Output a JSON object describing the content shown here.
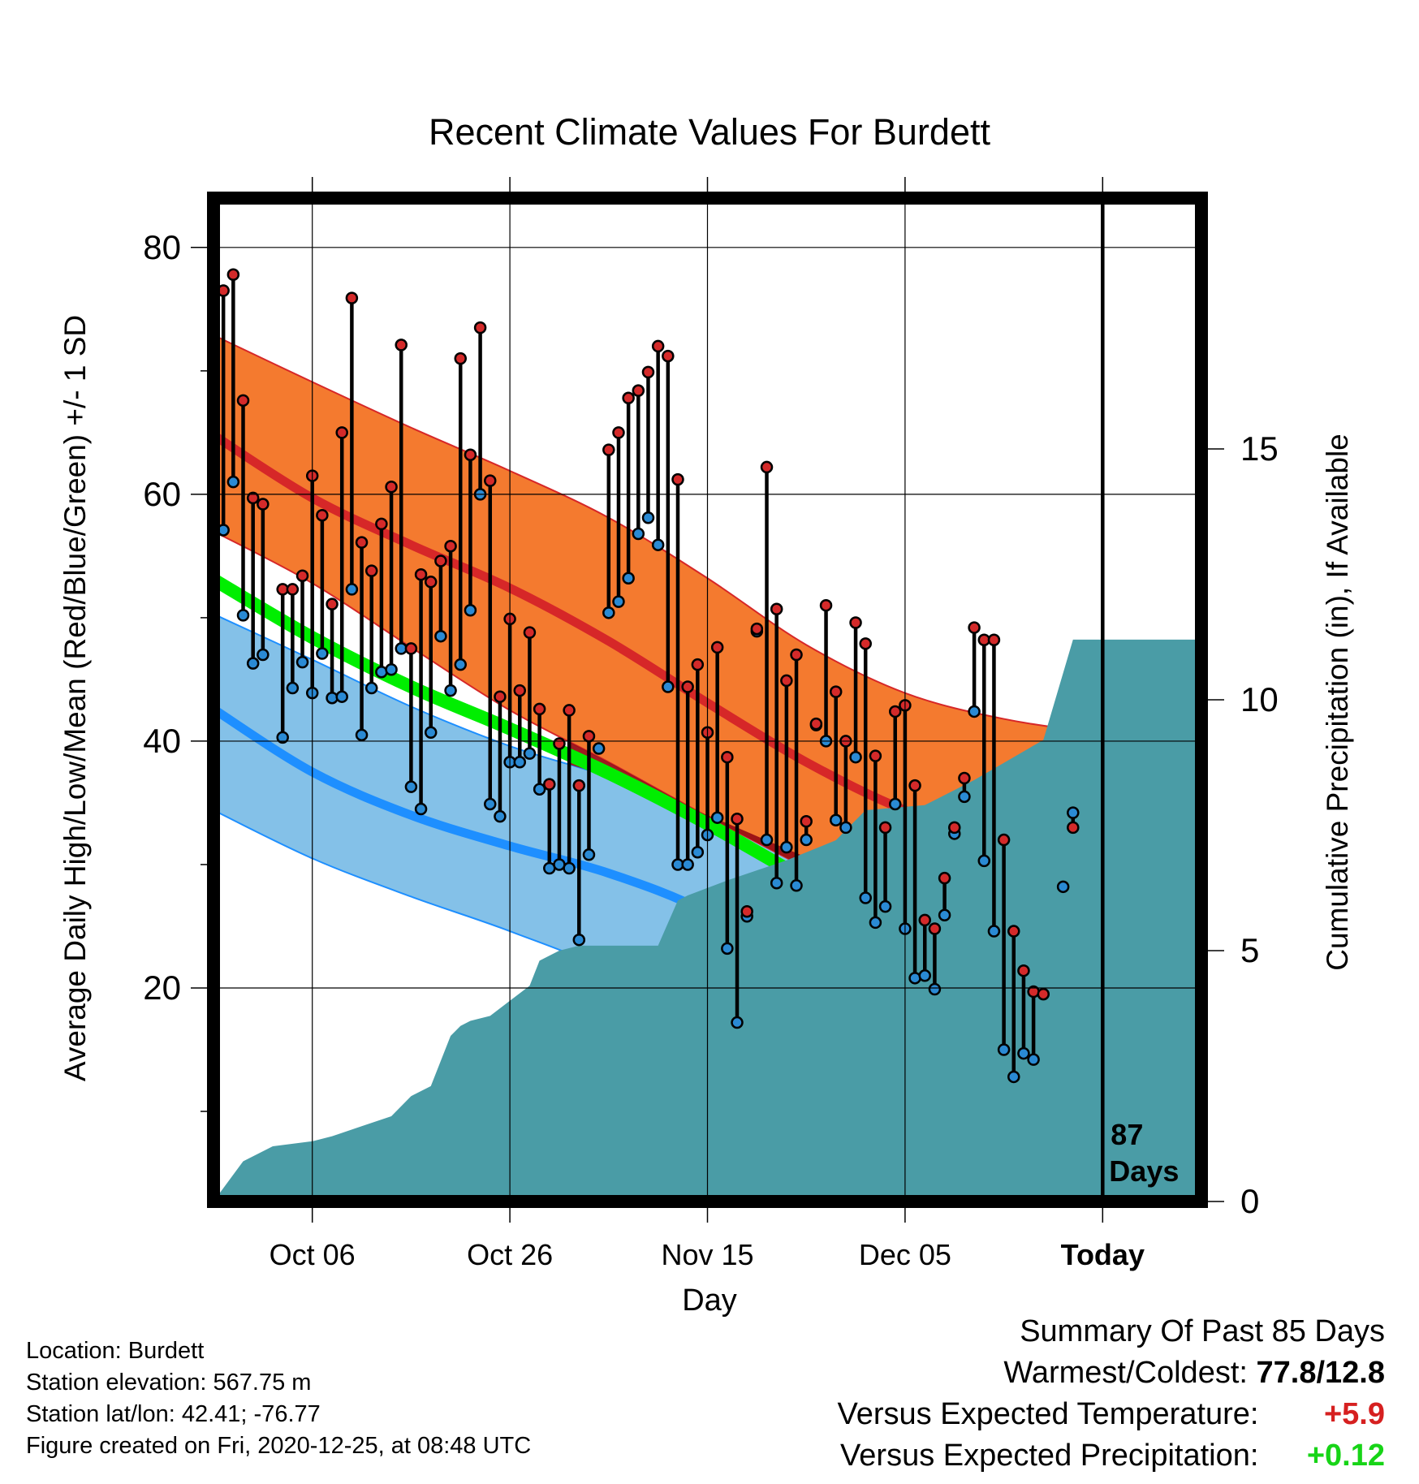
{
  "chart_data": {
    "type": "line",
    "title": "Recent Climate Values For Burdett",
    "xlabel": "Day",
    "ylabel_left": "Average Daily High/Low/Mean (Red/Blue/Green) +/- 1 SD",
    "ylabel_right": "Cumulative Precipitation (in), If Available",
    "x_tick_labels": [
      "Oct 06",
      "Oct 26",
      "Nov 15",
      "Dec 05",
      "Today"
    ],
    "x_tick_days": [
      10,
      30,
      50,
      70,
      90
    ],
    "y_ticks_left": [
      20,
      40,
      60,
      80
    ],
    "y_ticks_right": [
      0,
      5,
      10,
      15
    ],
    "ylim_left": [
      2.7,
      84
    ],
    "ylim_right": [
      0,
      20
    ],
    "xlim_days": [
      0,
      100
    ],
    "today_marker_label": [
      "87",
      "Days"
    ],
    "today_day": 90,
    "normals_x": [
      0,
      10,
      20,
      30,
      40,
      50,
      60,
      70,
      80,
      90,
      100
    ],
    "normal_high_mean": [
      64.8,
      59.7,
      55.9,
      52.4,
      48.1,
      43.1,
      38.3,
      34.4,
      31.9,
      30.5,
      29.5
    ],
    "normal_high_upper": [
      72.9,
      69.1,
      65.4,
      61.9,
      58.1,
      53.2,
      47.8,
      43.9,
      41.8,
      40.7,
      40.4
    ],
    "normal_high_lower": [
      57.0,
      52.8,
      47.6,
      42.5,
      38.3,
      33.9,
      29.7,
      25.4,
      21.7,
      20.0,
      19.4
    ],
    "normal_mean": [
      53.1,
      48.4,
      44.4,
      41.0,
      37.4,
      33.3,
      28.8,
      24.9,
      22.0,
      20.7,
      20.3
    ],
    "normal_low_mean": [
      42.6,
      37.5,
      34.0,
      31.5,
      29.3,
      26.1,
      21.0,
      15.8,
      12.6,
      11.1,
      10.6
    ],
    "normal_low_upper": [
      50.3,
      46.6,
      42.8,
      39.6,
      37.1,
      34.0,
      30.6,
      27.5,
      25.3,
      23.7,
      21.9
    ],
    "normal_low_lower": [
      34.4,
      30.5,
      27.4,
      24.6,
      21.3,
      16.1,
      11.3,
      6.3,
      3.0,
      1.8,
      1.4
    ],
    "observed_days": [
      0,
      1,
      2,
      3,
      4,
      5,
      6,
      7,
      8,
      9,
      10,
      11,
      12,
      13,
      14,
      15,
      16,
      17,
      18,
      19,
      20,
      21,
      22,
      23,
      24,
      25,
      26,
      27,
      28,
      29,
      30,
      31,
      32,
      33,
      34,
      35,
      36,
      37,
      38,
      39,
      40,
      41,
      42,
      43,
      44,
      45,
      46,
      47,
      48,
      49,
      50,
      51,
      52,
      53,
      54,
      55,
      56,
      57,
      58,
      59,
      60,
      61,
      62,
      63,
      64,
      65,
      66,
      67,
      68,
      69,
      70,
      71,
      72,
      73,
      74,
      75,
      76,
      77,
      78,
      79,
      80,
      81,
      82,
      83,
      84,
      85,
      86,
      87
    ],
    "observed_high": [
      74.3,
      76.5,
      77.8,
      67.6,
      59.7,
      59.2,
      null,
      52.3,
      52.3,
      53.4,
      61.5,
      58.3,
      51.1,
      65.0,
      75.9,
      56.1,
      53.8,
      57.6,
      60.6,
      72.1,
      47.5,
      53.5,
      52.9,
      54.6,
      55.8,
      71.0,
      63.2,
      73.5,
      61.1,
      43.6,
      49.9,
      44.1,
      48.8,
      42.6,
      36.5,
      39.8,
      42.5,
      36.4,
      40.4,
      null,
      63.6,
      65.0,
      67.8,
      68.4,
      69.9,
      72.0,
      71.2,
      61.2,
      44.4,
      46.2,
      40.7,
      47.6,
      38.7,
      33.7,
      26.2,
      49.1,
      62.2,
      50.7,
      44.9,
      47.0,
      33.5,
      41.4,
      51.0,
      44.0,
      40.0,
      49.6,
      47.9,
      38.8,
      33.0,
      42.4,
      42.9,
      36.4,
      25.5,
      24.8,
      28.9,
      33.0,
      37.0,
      49.2,
      48.2,
      48.2,
      32.0,
      24.6,
      21.4,
      19.7,
      19.5,
      null,
      null,
      33.0
    ],
    "observed_low": [
      56.2,
      57.1,
      61.0,
      50.2,
      46.3,
      47.0,
      null,
      40.3,
      44.3,
      46.4,
      43.9,
      47.1,
      43.5,
      43.6,
      52.3,
      40.5,
      44.3,
      45.6,
      45.8,
      47.5,
      36.3,
      34.5,
      40.7,
      48.5,
      44.1,
      46.2,
      50.6,
      60.0,
      34.9,
      33.9,
      38.3,
      38.3,
      39.0,
      36.1,
      29.7,
      30.0,
      29.7,
      23.9,
      30.8,
      39.4,
      50.4,
      51.3,
      53.2,
      56.8,
      58.1,
      55.9,
      44.4,
      30.0,
      30.0,
      31.0,
      32.4,
      33.8,
      23.2,
      17.2,
      25.8,
      48.9,
      32.0,
      28.5,
      31.4,
      28.3,
      32.0,
      41.3,
      40.0,
      33.6,
      33.0,
      38.7,
      27.3,
      25.3,
      26.6,
      34.9,
      24.8,
      20.8,
      21.0,
      19.9,
      25.9,
      32.5,
      35.5,
      42.4,
      30.3,
      24.6,
      15.0,
      12.8,
      14.7,
      14.2,
      null,
      null,
      28.2,
      34.2
    ],
    "precip_days": [
      0,
      3,
      6,
      10,
      12,
      15,
      18,
      20,
      22,
      24,
      25,
      26,
      28,
      30,
      32,
      33,
      35,
      37,
      40,
      42,
      45,
      47,
      48,
      52,
      55,
      58,
      63,
      66,
      72,
      77,
      84,
      87,
      88,
      100
    ],
    "precip_cumulative": [
      0.0,
      0.8,
      1.1,
      1.2,
      1.3,
      1.5,
      1.7,
      2.1,
      2.3,
      3.3,
      3.5,
      3.6,
      3.7,
      4.0,
      4.3,
      4.8,
      5.0,
      5.1,
      5.1,
      5.1,
      5.1,
      6.0,
      6.1,
      6.4,
      6.6,
      6.8,
      7.2,
      7.8,
      7.9,
      8.4,
      9.2,
      11.2,
      11.2,
      11.2
    ]
  },
  "footer": {
    "location": "Location: Burdett",
    "elevation": "Station elevation: 567.75 m",
    "latlon": "Station lat/lon: 42.41; -76.77",
    "created": "Figure created on Fri, 2020-12-25, at 08:48 UTC"
  },
  "summary": {
    "title": "Summary Of Past 85 Days",
    "warm_cold_label": "Warmest/Coldest:",
    "warm_cold_value": "77.8/12.8",
    "temp_label": "Versus Expected Temperature:",
    "temp_value": "+5.9",
    "precip_label": "Versus Expected Precipitation:",
    "precip_value": "+0.12"
  },
  "colors": {
    "high_band": "#f47a2f",
    "high_line": "#d62728",
    "low_band": "#84c1e8",
    "low_line": "#1e8fff",
    "mean_line": "#00ee00",
    "overlap": "#980f15",
    "precip": "#4a9ca6",
    "high_dot": "#d42a2a",
    "low_dot": "#2a8ad4"
  }
}
